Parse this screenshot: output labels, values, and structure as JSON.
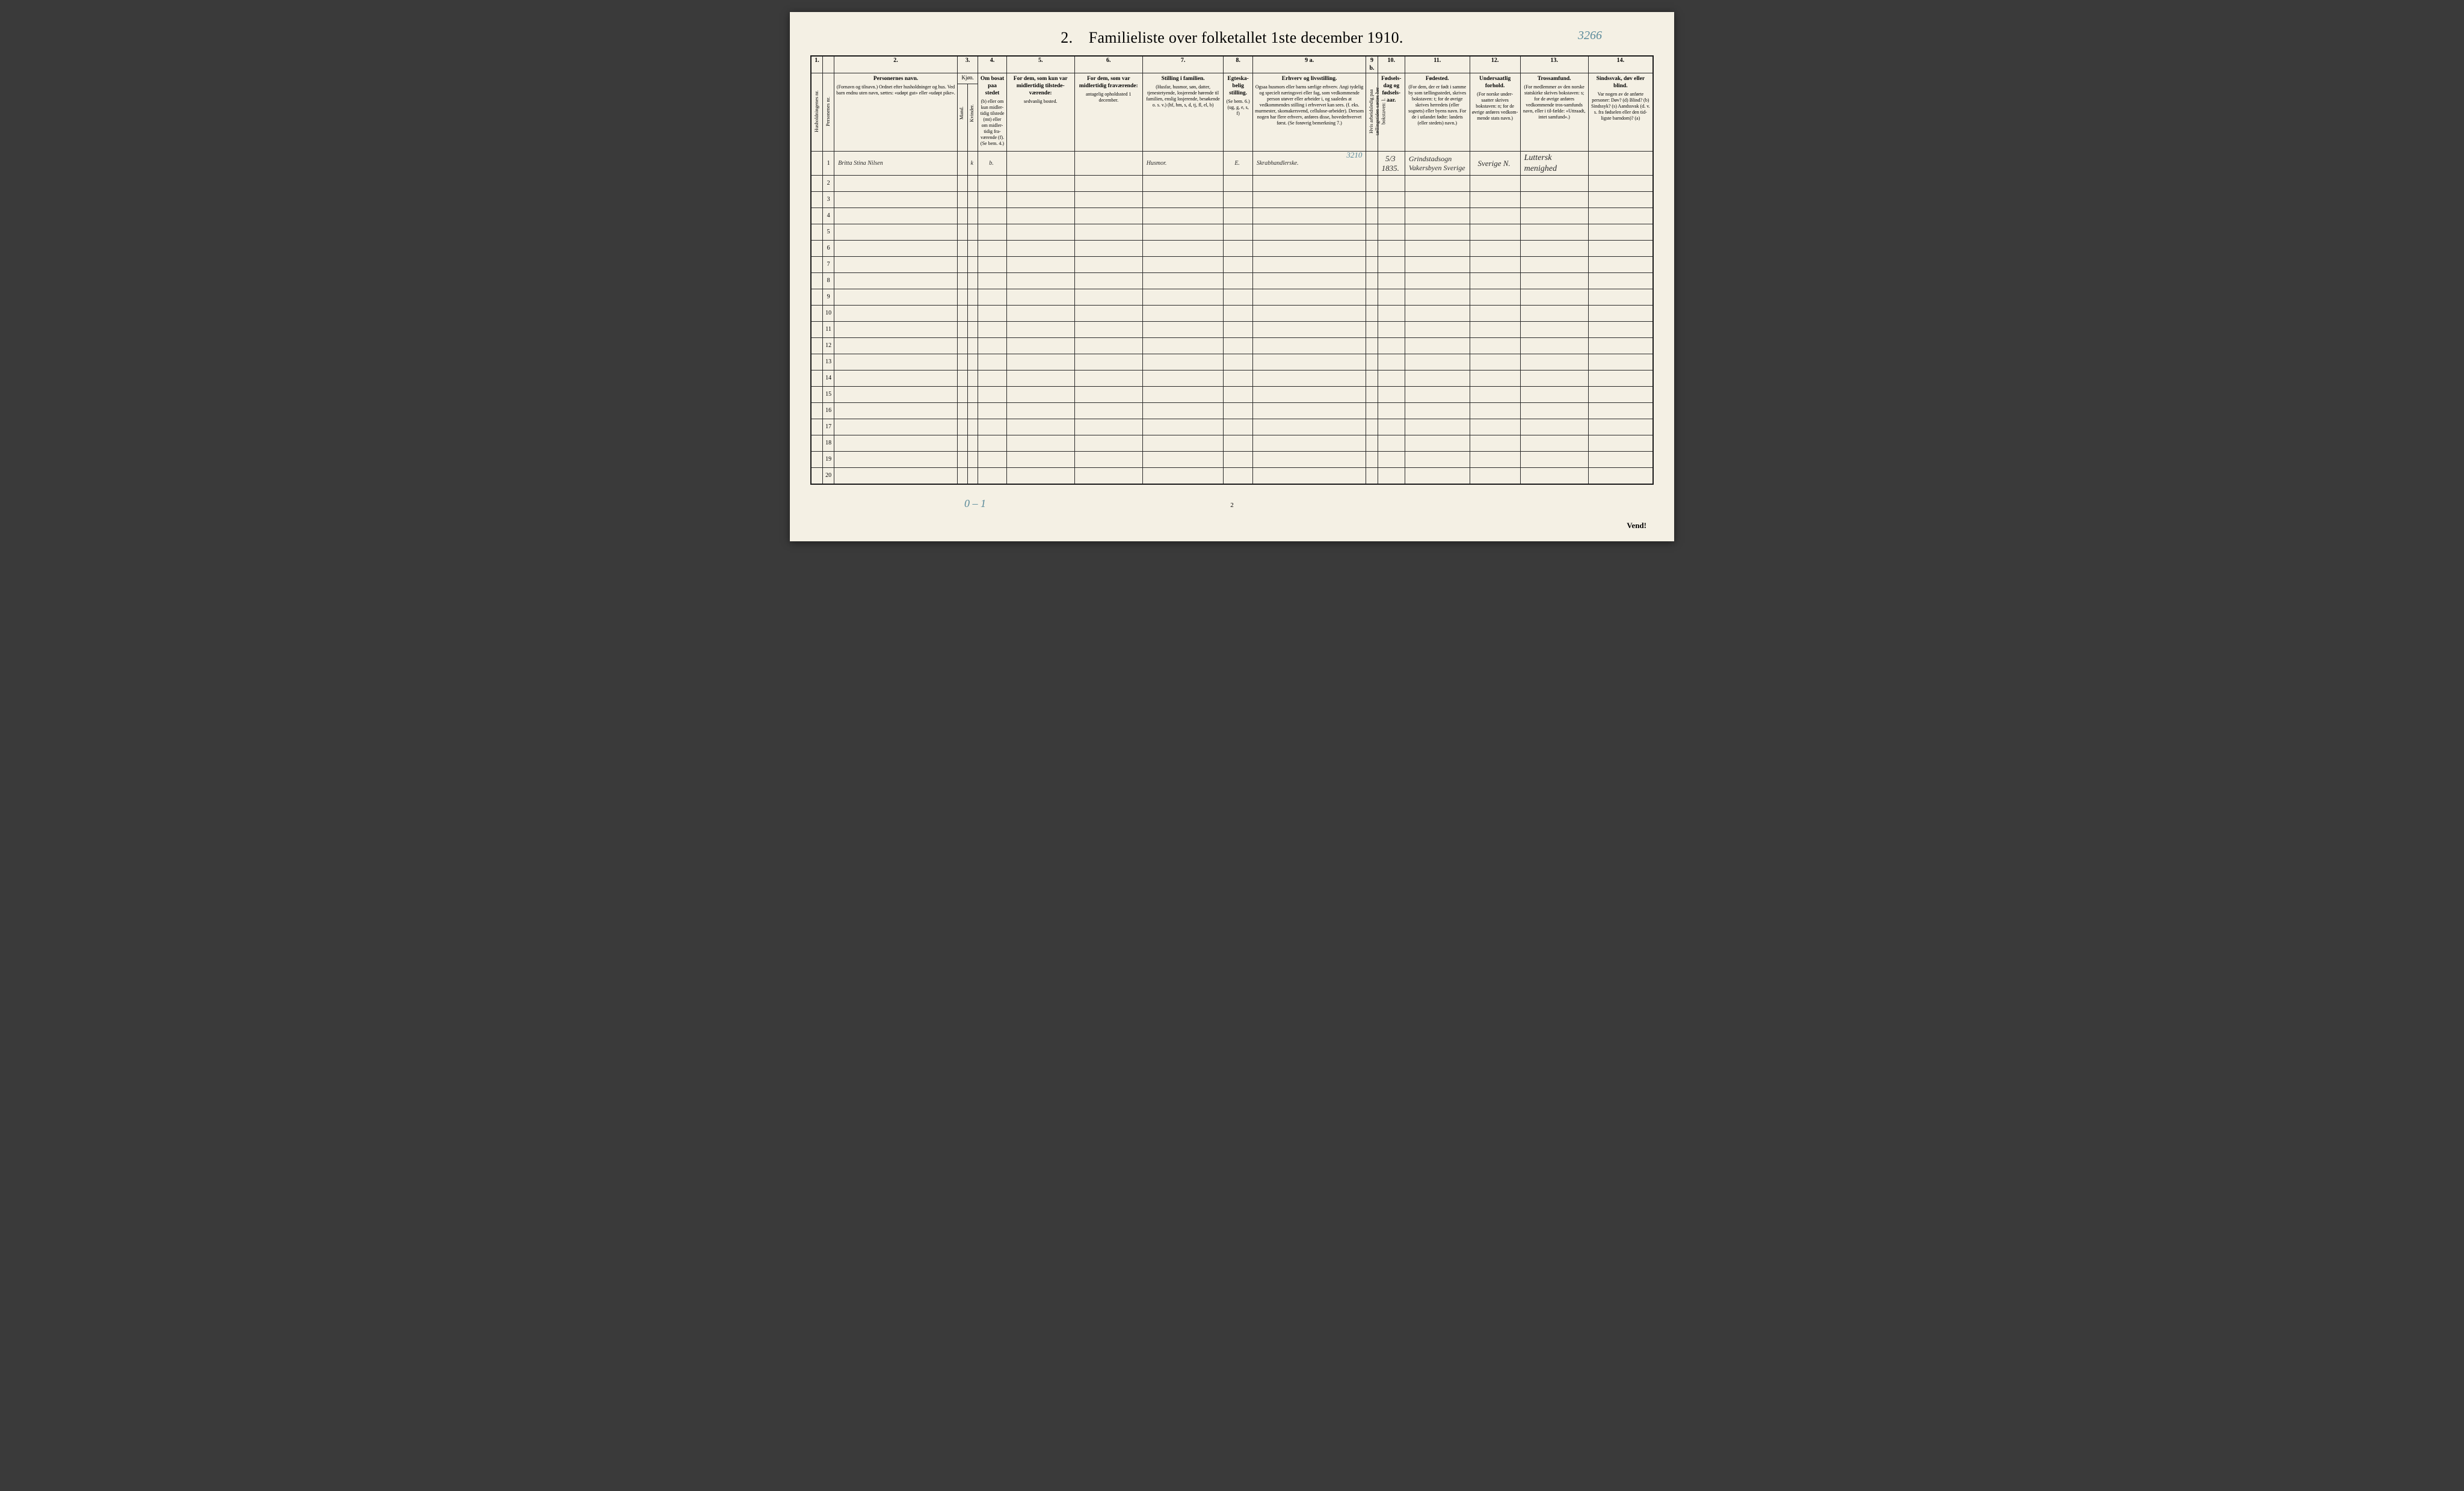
{
  "title": "2. Familieliste over folketallet 1ste december 1910.",
  "top_annotation": "3266",
  "footer_pagenum": "2",
  "footer_note": "0 – 1",
  "vend": "Vend!",
  "colors": {
    "page_bg": "#f4f0e4",
    "ink": "#2a2a2a",
    "rule": "#1a1a1a",
    "pencil": "#5a8a9a"
  },
  "col_numbers": [
    "1.",
    "",
    "2.",
    "3.",
    "",
    "4.",
    "5.",
    "6.",
    "7.",
    "8.",
    "9 a.",
    "9 b.",
    "10.",
    "11.",
    "12.",
    "13.",
    "14."
  ],
  "headers": {
    "husholdning": "Husholdningenes nr.",
    "personnr": "Personenes nr.",
    "navn_title": "Personernes navn.",
    "navn_body": "(Fornavn og tilnavn.)\nOrdnet efter husholdninger og hus.\nVed barn endnu uten navn, sættes: «udøpt gut» eller «udøpt pike».",
    "kjon": "Kjøn.",
    "kjon_m": "Mand.",
    "kjon_k": "Kvinder.",
    "kjon_mk": "m.  k.",
    "bosat_title": "Om bosat paa stedet",
    "bosat_body": "(b) eller om kun midler-tidig tilstede (mt) eller om midler-tidig fra-værende (f). (Se bem. 4.)",
    "tilstede_title": "For dem, som kun var midlertidig tilstede-værende:",
    "tilstede_body": "sedvanlig bosted.",
    "fravaer_title": "For dem, som var midlertidig fraværende:",
    "fravaer_body": "antagelig opholdssted 1 december.",
    "stilling_title": "Stilling i familien.",
    "stilling_body": "(Husfar, husmor, søn, datter, tjenestetyende, losjerende hørende til familien, enslig losjerende, besøkende o. s. v.)\n(hf, hm, s, d, tj, fl, el, b)",
    "egte_title": "Egteska-belig stilling.",
    "egte_body": "(Se bem. 6.)\n(ug, g, e, s, f)",
    "erhverv_title": "Erhverv og livsstilling.",
    "erhverv_body": "Ogsaa husmors eller barns særlige erhverv. Angi tydelig og specielt næringsvei eller fag, som vedkommende person utøver eller arbeider i, og saaledes at vedkommendes stilling i erhvervet kan sees. (f. eks. murmester, skomakersvend, cellulose-arbeider). Dersom nogen har flere erhverv, anføres disse, hovederhvervet først.\n(Se forøvrig bemerkning 7.)",
    "arbledig": "Hvis arbeidsledig paa tællingstiden sættes her bokstaven: l.",
    "fodsel_title": "Fødsels-dag og fødsels-aar.",
    "fodested_title": "Fødested.",
    "fodested_body": "(For dem, der er født i samme by som tællingsstedet, skrives bokstaven: t; for de øvrige skrives herredets (eller sognets) eller byens navn. For de i utlandet fødte: landets (eller stedets) navn.)",
    "undersaat_title": "Undersaatlig forhold.",
    "undersaat_body": "(For norske under-saatter skrives bokstaven: n; for de øvrige anføres vedkom-mende stats navn.)",
    "tros_title": "Trossamfund.",
    "tros_body": "(For medlemmer av den norske statskirke skrives bokstaven: s; for de øvrige anføres vedkommende tros-samfunds navn, eller i til-fælde: «Uttraadt, intet samfund».)",
    "sind_title": "Sindssvak, døv eller blind.",
    "sind_body": "Var nogen av de anførte personer:\nDøv? (d)\nBlind? (b)\nSindssyk? (s)\nAandssvak (d. v. s. fra fødselen eller den tid-ligste barndom)? (a)"
  },
  "data_row": {
    "person_nr": "1",
    "name": "Britta Stina Nilsen",
    "kjon_k": "k",
    "bosat": "b.",
    "stilling": "Husmor.",
    "egte": "E.",
    "erhverv": "Skrabhandlerske.",
    "erhverv_anno": "3210",
    "fdag": "5/3 1835.",
    "fodested": "Grindstadsogn Vakersbyen Sverige",
    "undersaat": "Sverige N.",
    "tros": "Luttersk menighed"
  },
  "row_numbers": [
    "1",
    "2",
    "3",
    "4",
    "5",
    "6",
    "7",
    "8",
    "9",
    "10",
    "11",
    "12",
    "13",
    "14",
    "15",
    "16",
    "17",
    "18",
    "19",
    "20"
  ]
}
